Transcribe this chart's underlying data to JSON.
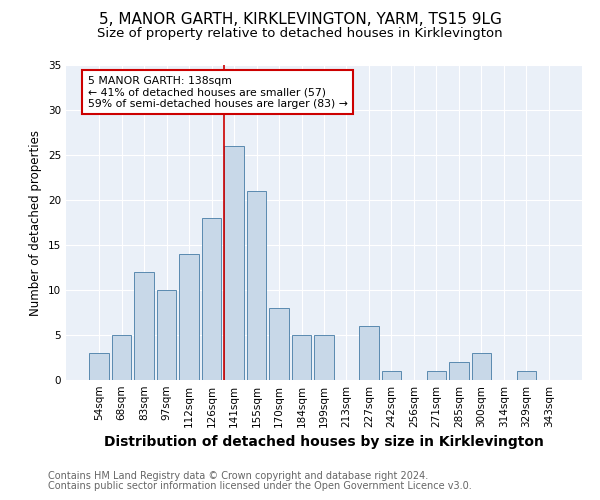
{
  "title": "5, MANOR GARTH, KIRKLEVINGTON, YARM, TS15 9LG",
  "subtitle": "Size of property relative to detached houses in Kirklevington",
  "xlabel": "Distribution of detached houses by size in Kirklevington",
  "ylabel": "Number of detached properties",
  "categories": [
    "54sqm",
    "68sqm",
    "83sqm",
    "97sqm",
    "112sqm",
    "126sqm",
    "141sqm",
    "155sqm",
    "170sqm",
    "184sqm",
    "199sqm",
    "213sqm",
    "227sqm",
    "242sqm",
    "256sqm",
    "271sqm",
    "285sqm",
    "300sqm",
    "314sqm",
    "329sqm",
    "343sqm"
  ],
  "values": [
    3,
    5,
    12,
    10,
    14,
    18,
    26,
    21,
    8,
    5,
    5,
    0,
    6,
    1,
    0,
    1,
    2,
    3,
    0,
    1,
    0
  ],
  "bar_color": "#c8d8e8",
  "bar_edge_color": "#5a8ab0",
  "redline_index": 6,
  "redline_color": "#cc0000",
  "annotation_box_line1": "5 MANOR GARTH: 138sqm",
  "annotation_box_line2": "← 41% of detached houses are smaller (57)",
  "annotation_box_line3": "59% of semi-detached houses are larger (83) →",
  "annotation_box_color": "#cc0000",
  "annotation_box_facecolor": "white",
  "ylim": [
    0,
    35
  ],
  "yticks": [
    0,
    5,
    10,
    15,
    20,
    25,
    30,
    35
  ],
  "plot_bg_color": "#eaf0f8",
  "footer_line1": "Contains HM Land Registry data © Crown copyright and database right 2024.",
  "footer_line2": "Contains public sector information licensed under the Open Government Licence v3.0.",
  "title_fontsize": 11,
  "subtitle_fontsize": 9.5,
  "xlabel_fontsize": 10,
  "ylabel_fontsize": 8.5,
  "tick_fontsize": 7.5,
  "footer_fontsize": 7
}
